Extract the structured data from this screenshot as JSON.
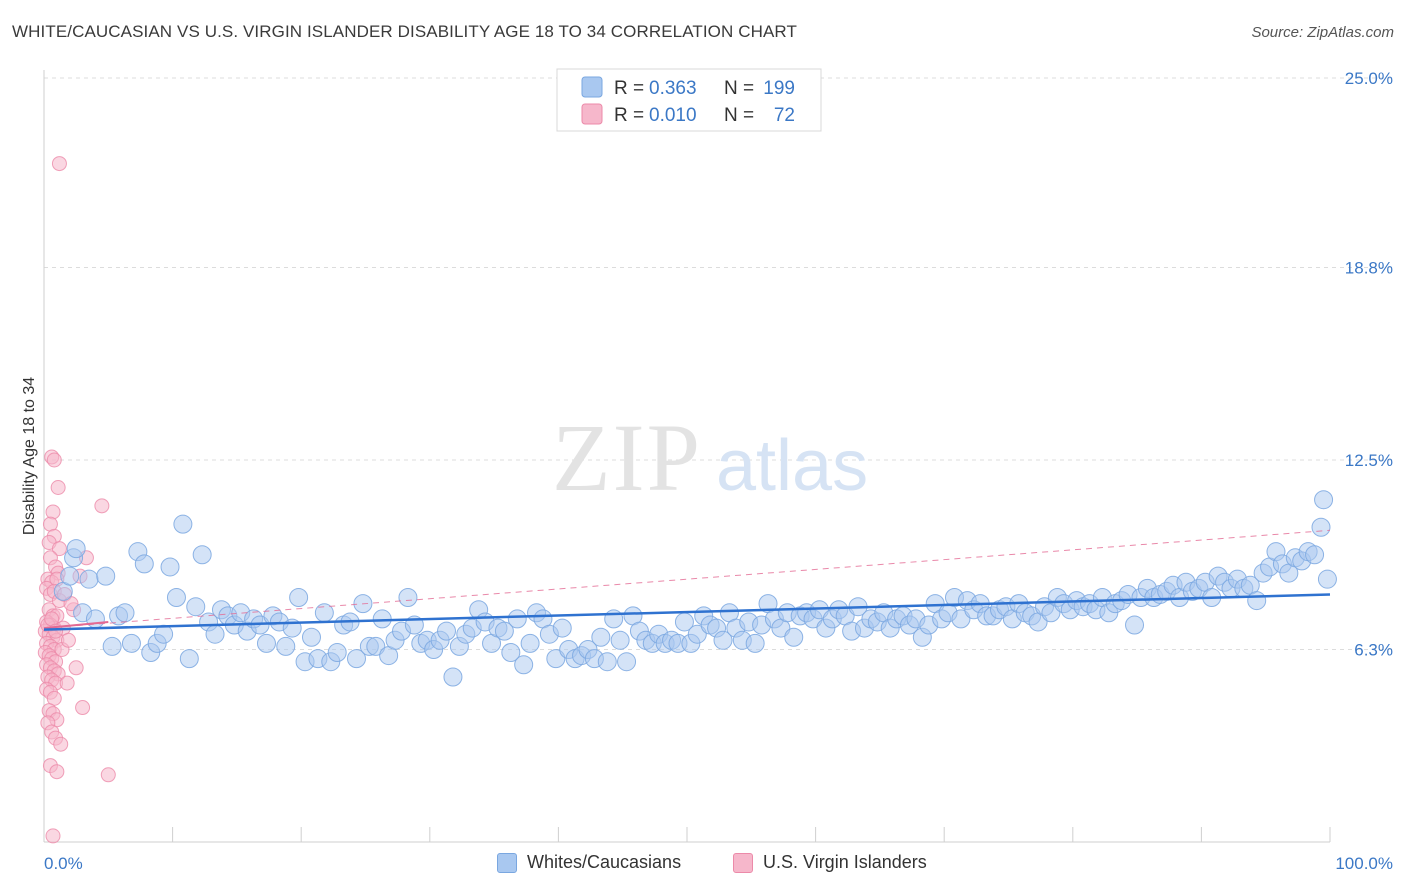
{
  "header": {
    "title": "WHITE/CAUCASIAN VS U.S. VIRGIN ISLANDER DISABILITY AGE 18 TO 34 CORRELATION CHART",
    "source": "Source: ZipAtlas.com"
  },
  "watermark": {
    "zip": "ZIP",
    "atlas": "atlas"
  },
  "colors": {
    "blue_fill": "#a9c8f0",
    "blue_stroke": "#7aa7e0",
    "blue_line": "#2f72d0",
    "pink_fill": "#f6b7cb",
    "pink_stroke": "#ec8aa9",
    "pink_line": "#e36a93",
    "tick_color": "#3b78c6",
    "grid": "#dcdcdc"
  },
  "chart_data": {
    "type": "scatter",
    "title": "WHITE/CAUCASIAN VS U.S. VIRGIN ISLANDER DISABILITY AGE 18 TO 34 CORRELATION CHART",
    "xlabel": "",
    "ylabel": "Disability Age 18 to 34",
    "xlim": [
      0,
      100
    ],
    "ylim": [
      0,
      25.0
    ],
    "x_tick_labels": [
      "0.0%",
      "100.0%"
    ],
    "y_ticks": [
      6.3,
      12.5,
      18.8,
      25.0
    ],
    "y_tick_labels": [
      "6.3%",
      "12.5%",
      "18.8%",
      "25.0%"
    ],
    "grid": true,
    "legend_top": [
      {
        "r_label": "R = ",
        "r_value": "0.363",
        "n_label": "N = ",
        "n_value": "199"
      },
      {
        "r_label": "R = ",
        "r_value": "0.010",
        "n_label": "N = ",
        "n_value": "72"
      }
    ],
    "series": [
      {
        "name": "Whites/Caucasians",
        "color": "#a9c8f0",
        "trend": {
          "x": [
            0,
            100
          ],
          "y": [
            6.95,
            8.1
          ],
          "style": "solid"
        },
        "points": [
          [
            1.5,
            8.2
          ],
          [
            2.0,
            8.7
          ],
          [
            2.3,
            9.3
          ],
          [
            2.5,
            9.6
          ],
          [
            3.0,
            7.5
          ],
          [
            3.5,
            8.6
          ],
          [
            4.0,
            7.3
          ],
          [
            4.8,
            8.7
          ],
          [
            5.3,
            6.4
          ],
          [
            5.8,
            7.4
          ],
          [
            6.3,
            7.5
          ],
          [
            6.8,
            6.5
          ],
          [
            7.3,
            9.5
          ],
          [
            7.8,
            9.1
          ],
          [
            8.3,
            6.2
          ],
          [
            8.8,
            6.5
          ],
          [
            9.3,
            6.8
          ],
          [
            9.8,
            9.0
          ],
          [
            10.3,
            8.0
          ],
          [
            10.8,
            10.4
          ],
          [
            11.3,
            6.0
          ],
          [
            11.8,
            7.7
          ],
          [
            12.3,
            9.4
          ],
          [
            12.8,
            7.2
          ],
          [
            13.3,
            6.8
          ],
          [
            13.8,
            7.6
          ],
          [
            14.3,
            7.4
          ],
          [
            14.8,
            7.1
          ],
          [
            15.3,
            7.5
          ],
          [
            15.8,
            6.9
          ],
          [
            16.3,
            7.3
          ],
          [
            16.8,
            7.1
          ],
          [
            17.3,
            6.5
          ],
          [
            17.8,
            7.4
          ],
          [
            18.3,
            7.2
          ],
          [
            18.8,
            6.4
          ],
          [
            19.3,
            7.0
          ],
          [
            19.8,
            8.0
          ],
          [
            20.3,
            5.9
          ],
          [
            20.8,
            6.7
          ],
          [
            21.3,
            6.0
          ],
          [
            21.8,
            7.5
          ],
          [
            22.3,
            5.9
          ],
          [
            22.8,
            6.2
          ],
          [
            23.3,
            7.1
          ],
          [
            23.8,
            7.2
          ],
          [
            24.3,
            6.0
          ],
          [
            24.8,
            7.8
          ],
          [
            25.3,
            6.4
          ],
          [
            25.8,
            6.4
          ],
          [
            26.3,
            7.3
          ],
          [
            26.8,
            6.1
          ],
          [
            27.3,
            6.6
          ],
          [
            27.8,
            6.9
          ],
          [
            28.3,
            8.0
          ],
          [
            28.8,
            7.1
          ],
          [
            29.3,
            6.5
          ],
          [
            29.8,
            6.6
          ],
          [
            30.3,
            6.3
          ],
          [
            30.8,
            6.6
          ],
          [
            31.3,
            6.9
          ],
          [
            31.8,
            5.4
          ],
          [
            32.3,
            6.4
          ],
          [
            32.8,
            6.8
          ],
          [
            33.3,
            7.0
          ],
          [
            33.8,
            7.6
          ],
          [
            34.3,
            7.2
          ],
          [
            34.8,
            6.5
          ],
          [
            35.3,
            7.0
          ],
          [
            35.8,
            6.9
          ],
          [
            36.3,
            6.2
          ],
          [
            36.8,
            7.3
          ],
          [
            37.3,
            5.8
          ],
          [
            37.8,
            6.5
          ],
          [
            38.3,
            7.5
          ],
          [
            38.8,
            7.3
          ],
          [
            39.3,
            6.8
          ],
          [
            39.8,
            6.0
          ],
          [
            40.3,
            7.0
          ],
          [
            40.8,
            6.3
          ],
          [
            41.3,
            6.0
          ],
          [
            41.8,
            6.1
          ],
          [
            42.3,
            6.3
          ],
          [
            42.8,
            6.0
          ],
          [
            43.3,
            6.7
          ],
          [
            43.8,
            5.9
          ],
          [
            44.3,
            7.3
          ],
          [
            44.8,
            6.6
          ],
          [
            45.3,
            5.9
          ],
          [
            45.8,
            7.4
          ],
          [
            46.3,
            6.9
          ],
          [
            46.8,
            6.6
          ],
          [
            47.3,
            6.5
          ],
          [
            47.8,
            6.8
          ],
          [
            48.3,
            6.5
          ],
          [
            48.8,
            6.6
          ],
          [
            49.3,
            6.5
          ],
          [
            49.8,
            7.2
          ],
          [
            50.3,
            6.5
          ],
          [
            50.8,
            6.8
          ],
          [
            51.3,
            7.4
          ],
          [
            51.8,
            7.1
          ],
          [
            52.3,
            7.0
          ],
          [
            52.8,
            6.6
          ],
          [
            53.3,
            7.5
          ],
          [
            53.8,
            7.0
          ],
          [
            54.3,
            6.6
          ],
          [
            54.8,
            7.2
          ],
          [
            55.3,
            6.5
          ],
          [
            55.8,
            7.1
          ],
          [
            56.3,
            7.8
          ],
          [
            56.8,
            7.3
          ],
          [
            57.3,
            7.0
          ],
          [
            57.8,
            7.5
          ],
          [
            58.3,
            6.7
          ],
          [
            58.8,
            7.4
          ],
          [
            59.3,
            7.5
          ],
          [
            59.8,
            7.3
          ],
          [
            60.3,
            7.6
          ],
          [
            60.8,
            7.0
          ],
          [
            61.3,
            7.3
          ],
          [
            61.8,
            7.6
          ],
          [
            62.3,
            7.4
          ],
          [
            62.8,
            6.9
          ],
          [
            63.3,
            7.7
          ],
          [
            63.8,
            7.0
          ],
          [
            64.3,
            7.3
          ],
          [
            64.8,
            7.2
          ],
          [
            65.3,
            7.5
          ],
          [
            65.8,
            7.0
          ],
          [
            66.3,
            7.3
          ],
          [
            66.8,
            7.4
          ],
          [
            67.3,
            7.1
          ],
          [
            67.8,
            7.3
          ],
          [
            68.3,
            6.7
          ],
          [
            68.8,
            7.1
          ],
          [
            69.3,
            7.8
          ],
          [
            69.8,
            7.3
          ],
          [
            70.3,
            7.5
          ],
          [
            70.8,
            8.0
          ],
          [
            71.3,
            7.3
          ],
          [
            71.8,
            7.9
          ],
          [
            72.3,
            7.6
          ],
          [
            72.8,
            7.8
          ],
          [
            73.3,
            7.4
          ],
          [
            73.8,
            7.4
          ],
          [
            74.3,
            7.6
          ],
          [
            74.8,
            7.7
          ],
          [
            75.3,
            7.3
          ],
          [
            75.8,
            7.8
          ],
          [
            76.3,
            7.5
          ],
          [
            76.8,
            7.4
          ],
          [
            77.3,
            7.2
          ],
          [
            77.8,
            7.7
          ],
          [
            78.3,
            7.5
          ],
          [
            78.8,
            8.0
          ],
          [
            79.3,
            7.8
          ],
          [
            79.8,
            7.6
          ],
          [
            80.3,
            7.9
          ],
          [
            80.8,
            7.7
          ],
          [
            81.3,
            7.8
          ],
          [
            81.8,
            7.6
          ],
          [
            82.3,
            8.0
          ],
          [
            82.8,
            7.5
          ],
          [
            83.3,
            7.8
          ],
          [
            83.8,
            7.9
          ],
          [
            84.3,
            8.1
          ],
          [
            84.8,
            7.1
          ],
          [
            85.3,
            8.0
          ],
          [
            85.8,
            8.3
          ],
          [
            86.3,
            8.0
          ],
          [
            86.8,
            8.1
          ],
          [
            87.3,
            8.2
          ],
          [
            87.8,
            8.4
          ],
          [
            88.3,
            8.0
          ],
          [
            88.8,
            8.5
          ],
          [
            89.3,
            8.2
          ],
          [
            89.8,
            8.3
          ],
          [
            90.3,
            8.5
          ],
          [
            90.8,
            8.0
          ],
          [
            91.3,
            8.7
          ],
          [
            91.8,
            8.5
          ],
          [
            92.3,
            8.3
          ],
          [
            92.8,
            8.6
          ],
          [
            93.3,
            8.3
          ],
          [
            93.8,
            8.4
          ],
          [
            94.3,
            7.9
          ],
          [
            94.8,
            8.8
          ],
          [
            95.3,
            9.0
          ],
          [
            95.8,
            9.5
          ],
          [
            96.3,
            9.1
          ],
          [
            96.8,
            8.8
          ],
          [
            97.3,
            9.3
          ],
          [
            97.8,
            9.2
          ],
          [
            98.3,
            9.5
          ],
          [
            98.8,
            9.4
          ],
          [
            99.3,
            10.3
          ],
          [
            99.5,
            11.2
          ],
          [
            99.8,
            8.6
          ]
        ]
      },
      {
        "name": "U.S. Virgin Islanders",
        "color": "#f6b7cb",
        "trend_solid": {
          "x": [
            0,
            5
          ],
          "y": [
            7.0,
            7.2
          ],
          "style": "solid"
        },
        "trend_dashed": {
          "x": [
            0,
            100
          ],
          "y": [
            7.0,
            10.2
          ],
          "style": "dashed"
        },
        "points": [
          [
            1.2,
            22.2
          ],
          [
            0.6,
            12.6
          ],
          [
            0.8,
            12.5
          ],
          [
            1.1,
            11.6
          ],
          [
            0.7,
            10.8
          ],
          [
            0.5,
            10.4
          ],
          [
            0.8,
            10.0
          ],
          [
            0.4,
            9.8
          ],
          [
            1.2,
            9.6
          ],
          [
            0.5,
            9.3
          ],
          [
            0.9,
            9.0
          ],
          [
            1.1,
            8.8
          ],
          [
            0.3,
            8.6
          ],
          [
            0.6,
            8.5
          ],
          [
            1.0,
            8.6
          ],
          [
            0.2,
            8.3
          ],
          [
            0.5,
            8.1
          ],
          [
            0.8,
            8.2
          ],
          [
            1.2,
            7.9
          ],
          [
            0.4,
            7.6
          ],
          [
            0.7,
            7.4
          ],
          [
            1.0,
            7.4
          ],
          [
            0.2,
            7.2
          ],
          [
            0.5,
            7.1
          ],
          [
            0.8,
            7.0
          ],
          [
            0.1,
            6.9
          ],
          [
            0.4,
            6.8
          ],
          [
            0.7,
            6.7
          ],
          [
            1.0,
            6.6
          ],
          [
            0.2,
            6.5
          ],
          [
            0.5,
            6.4
          ],
          [
            0.8,
            6.3
          ],
          [
            0.1,
            6.2
          ],
          [
            0.4,
            6.1
          ],
          [
            0.6,
            6.0
          ],
          [
            0.9,
            5.9
          ],
          [
            0.2,
            5.8
          ],
          [
            0.5,
            5.7
          ],
          [
            0.8,
            5.6
          ],
          [
            1.1,
            5.5
          ],
          [
            0.3,
            5.4
          ],
          [
            0.6,
            5.3
          ],
          [
            0.9,
            5.2
          ],
          [
            0.2,
            5.0
          ],
          [
            0.5,
            4.9
          ],
          [
            0.8,
            4.7
          ],
          [
            0.4,
            4.3
          ],
          [
            0.7,
            4.2
          ],
          [
            1.0,
            4.0
          ],
          [
            0.3,
            3.9
          ],
          [
            0.6,
            3.6
          ],
          [
            0.9,
            3.4
          ],
          [
            1.3,
            3.2
          ],
          [
            0.5,
            2.5
          ],
          [
            1.0,
            2.3
          ],
          [
            0.7,
            0.2
          ],
          [
            5.0,
            2.2
          ],
          [
            2.3,
            7.6
          ],
          [
            4.5,
            11.0
          ],
          [
            3.3,
            9.3
          ],
          [
            2.8,
            8.7
          ],
          [
            1.6,
            8.1
          ],
          [
            2.1,
            7.8
          ],
          [
            1.4,
            6.3
          ],
          [
            3.0,
            4.4
          ],
          [
            2.5,
            5.7
          ],
          [
            1.8,
            5.2
          ],
          [
            1.5,
            7.0
          ],
          [
            1.9,
            6.6
          ],
          [
            0.3,
            7.1
          ],
          [
            0.6,
            7.3
          ],
          [
            0.9,
            6.9
          ]
        ]
      }
    ]
  },
  "bottom_legend": [
    {
      "label": "Whites/Caucasians"
    },
    {
      "label": "U.S. Virgin Islanders"
    }
  ]
}
